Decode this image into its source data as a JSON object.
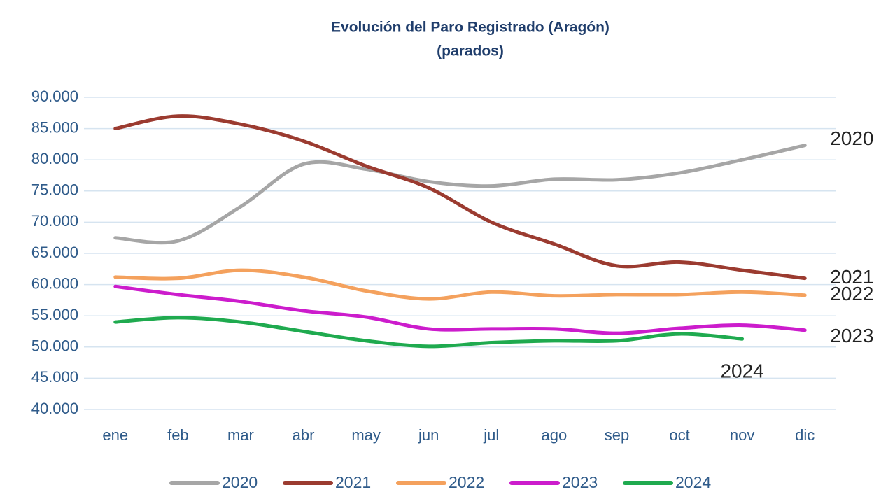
{
  "chart_data": {
    "type": "line",
    "title": "Evolución del Paro Registrado (Aragón)",
    "subtitle": "(parados)",
    "categories": [
      "ene",
      "feb",
      "mar",
      "abr",
      "may",
      "jun",
      "jul",
      "ago",
      "sep",
      "oct",
      "nov",
      "dic"
    ],
    "series": [
      {
        "name": "2020",
        "color": "#a6a6a6",
        "values": [
          67500,
          67000,
          72500,
          79300,
          78500,
          76500,
          75800,
          76900,
          76800,
          77900,
          80000,
          82300
        ]
      },
      {
        "name": "2021",
        "color": "#9b3b30",
        "values": [
          85000,
          87000,
          85700,
          83000,
          79000,
          75500,
          70000,
          66500,
          63000,
          63600,
          62300,
          61000
        ]
      },
      {
        "name": "2022",
        "color": "#f4a15d",
        "values": [
          61200,
          61000,
          62300,
          61200,
          59000,
          57700,
          58800,
          58200,
          58400,
          58400,
          58800,
          58300
        ]
      },
      {
        "name": "2023",
        "color": "#cc1ccc",
        "values": [
          59700,
          58400,
          57300,
          55800,
          54800,
          52900,
          52900,
          52900,
          52200,
          53000,
          53500,
          52700
        ]
      },
      {
        "name": "2024",
        "color": "#1faa4f",
        "values": [
          54000,
          54700,
          54000,
          52500,
          51000,
          50100,
          50700,
          51000,
          51000,
          52100,
          51300,
          null
        ]
      }
    ],
    "ylim": [
      40000,
      90000
    ],
    "yticks": [
      {
        "value": 40000,
        "label": "40.000"
      },
      {
        "value": 45000,
        "label": "45.000"
      },
      {
        "value": 50000,
        "label": "50.000"
      },
      {
        "value": 55000,
        "label": "55.000"
      },
      {
        "value": 60000,
        "label": "60.000"
      },
      {
        "value": 65000,
        "label": "65.000"
      },
      {
        "value": 70000,
        "label": "70.000"
      },
      {
        "value": 75000,
        "label": "75.000"
      },
      {
        "value": 80000,
        "label": "80.000"
      },
      {
        "value": 85000,
        "label": "85.000"
      },
      {
        "value": 90000,
        "label": "90.000"
      }
    ],
    "grid": true,
    "legend": "bottom"
  }
}
